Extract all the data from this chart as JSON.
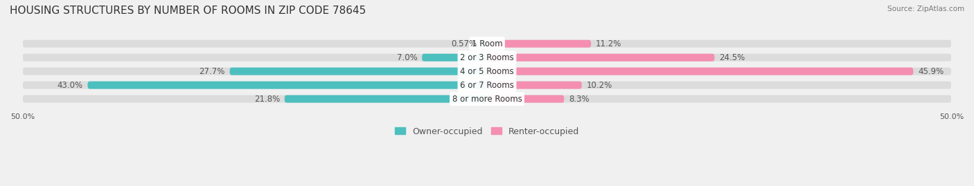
{
  "title": "HOUSING STRUCTURES BY NUMBER OF ROOMS IN ZIP CODE 78645",
  "source": "Source: ZipAtlas.com",
  "categories": [
    "1 Room",
    "2 or 3 Rooms",
    "4 or 5 Rooms",
    "6 or 7 Rooms",
    "8 or more Rooms"
  ],
  "owner_values": [
    0.57,
    7.0,
    27.7,
    43.0,
    21.8
  ],
  "renter_values": [
    11.2,
    24.5,
    45.9,
    10.2,
    8.3
  ],
  "owner_color": "#4DBFBF",
  "renter_color": "#F48FB1",
  "bg_color": "#F0F0F0",
  "bar_bg_color": "#E8E8E8",
  "xlim": 50.0,
  "bar_height": 0.55,
  "title_fontsize": 11,
  "label_fontsize": 8.5,
  "axis_label_fontsize": 8,
  "legend_fontsize": 9
}
